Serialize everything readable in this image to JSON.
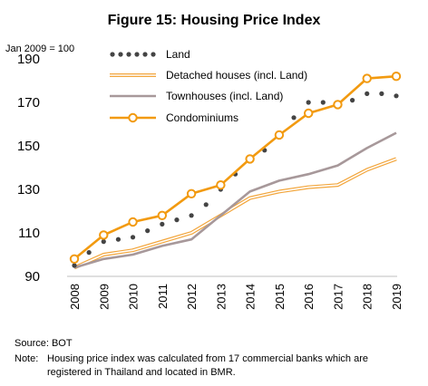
{
  "chart_data": {
    "type": "line",
    "title": "Figure 15: Housing Price Index",
    "ylabel": "Jan 2009 = 100",
    "xlabel": "",
    "categories": [
      "2008",
      "2009",
      "2010",
      "2011",
      "2012",
      "2013",
      "2014",
      "2015",
      "2016",
      "2017",
      "2018",
      "2019"
    ],
    "ylim": [
      90,
      195
    ],
    "yticks": [
      90,
      110,
      130,
      150,
      170,
      190
    ],
    "grid": false,
    "legend_position": "top-left",
    "series": [
      {
        "name": "Land",
        "style": "dotted",
        "color": "#444444",
        "x": [
          2008,
          2008.5,
          2009,
          2009.5,
          2010,
          2010.5,
          2011,
          2011.5,
          2012,
          2012.5,
          2013,
          2013.5,
          2014,
          2014.5,
          2015,
          2015.5,
          2016,
          2016.5,
          2017,
          2017.5,
          2018,
          2018.5,
          2019
        ],
        "values": [
          95,
          101,
          106,
          107,
          108,
          111,
          114,
          116,
          118,
          123,
          130,
          137,
          143,
          148,
          156,
          163,
          170,
          170,
          169,
          171,
          174,
          174,
          173
        ]
      },
      {
        "name": "Detached houses (incl. Land)",
        "style": "double",
        "color": "#F2A53B",
        "values": [
          94,
          100,
          102,
          106,
          110,
          118,
          126,
          129,
          131,
          132,
          139,
          144
        ]
      },
      {
        "name": "Townhouses (incl. Land)",
        "style": "solid",
        "color": "#A7989A",
        "values": [
          94,
          98,
          100,
          104,
          107,
          118,
          129,
          134,
          137,
          141,
          149,
          156
        ]
      },
      {
        "name": "Condominiums",
        "style": "marker",
        "color": "#F29A10",
        "values": [
          98,
          109,
          115,
          118,
          128,
          132,
          144,
          155,
          165,
          169,
          181,
          182
        ]
      }
    ],
    "notes": {
      "source": "Source: BOT",
      "note_label": "Note:",
      "note_line1": "Housing price index was calculated from 17 commercial banks which are",
      "note_line2": "registered in Thailand and located in BMR."
    }
  }
}
